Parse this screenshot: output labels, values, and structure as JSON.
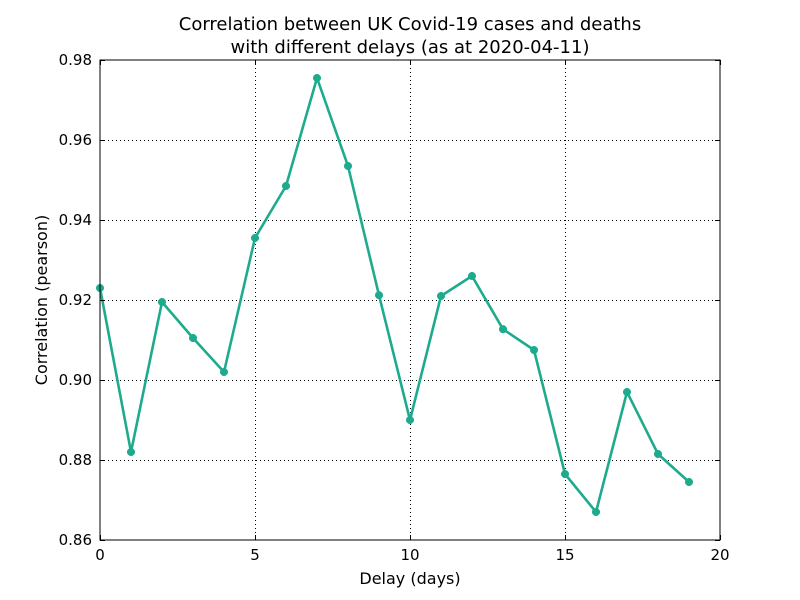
{
  "chart_data": {
    "type": "line",
    "title_lines": [
      "Correlation between UK Covid-19 cases and deaths",
      "with different delays (as at 2020-04-11)"
    ],
    "xlabel": "Delay (days)",
    "ylabel": "Correlation (pearson)",
    "xlim": [
      0,
      20
    ],
    "ylim": [
      0.86,
      0.98
    ],
    "x_ticks": [
      0,
      5,
      10,
      15,
      20
    ],
    "x_tick_labels": [
      "0",
      "5",
      "10",
      "15",
      "20"
    ],
    "y_ticks": [
      0.86,
      0.88,
      0.9,
      0.92,
      0.94,
      0.96,
      0.98
    ],
    "y_tick_labels": [
      "0.86",
      "0.88",
      "0.90",
      "0.92",
      "0.94",
      "0.96",
      "0.98"
    ],
    "grid": true,
    "legend": "none",
    "series": [
      {
        "color": "#1eab8d",
        "x": [
          0,
          1,
          2,
          3,
          4,
          5,
          6,
          7,
          8,
          9,
          10,
          11,
          12,
          13,
          14,
          15,
          16,
          17,
          18,
          19
        ],
        "y": [
          0.923,
          0.882,
          0.9195,
          0.9105,
          0.902,
          0.9355,
          0.9485,
          0.9755,
          0.9535,
          0.9212,
          0.89,
          0.921,
          0.926,
          0.9127,
          0.9075,
          0.8765,
          0.867,
          0.897,
          0.8815,
          0.8745
        ]
      }
    ]
  }
}
